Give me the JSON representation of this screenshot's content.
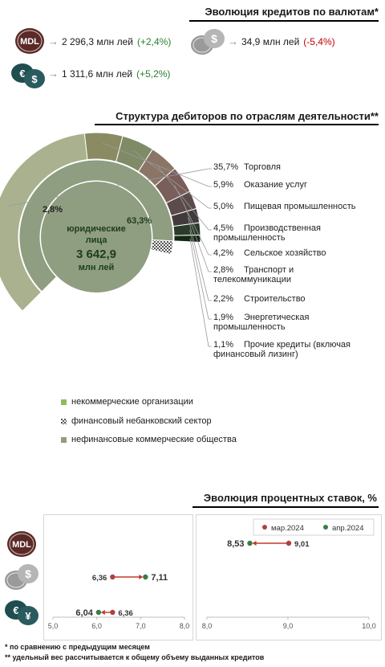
{
  "credits": {
    "title": "Эволюция кредитов по валютам*",
    "items": [
      {
        "icon": "mdl-coin-icon",
        "label": "MDL",
        "value": "2 296,3 млн лей",
        "change": "(+2,4%)",
        "trend": "up"
      },
      {
        "icon": "foreign-currency-coins-icon",
        "label": "$",
        "value": "34,9 млн лей",
        "change": "(-5,4%)",
        "trend": "down"
      },
      {
        "icon": "euro-dollar-coins-icon",
        "label": "€$",
        "value": "1 311,6 млн лей",
        "change": "(+5,2%)",
        "trend": "up"
      }
    ]
  },
  "structure": {
    "title": "Структура дебиторов по отраслям деятельности**",
    "center_label_top": "юридические",
    "center_label_mid": "лица",
    "center_value": "3 642,9",
    "center_unit": "млн лей",
    "inner_label_big": "63,3%",
    "inner_label_small": "2,8%",
    "labels": [
      {
        "pct": "35,7%",
        "text": "Торговля"
      },
      {
        "pct": "5,9%",
        "text": "Оказание услуг"
      },
      {
        "pct": "5,0%",
        "text": "Пищевая промышленность"
      },
      {
        "pct": "4,5%",
        "text": "Производственная",
        "text2": "промышленность"
      },
      {
        "pct": "4,2%",
        "text": "Сельское хозяйство"
      },
      {
        "pct": "2,8%",
        "text": "Транспорт и",
        "text2": "телекоммуникации"
      },
      {
        "pct": "2,2%",
        "text": "Строительство"
      },
      {
        "pct": "1,9%",
        "text": "Энергетическая",
        "text2": "промышленность"
      },
      {
        "pct": "1,1%",
        "text": "Прочие кредиты (включая",
        "text2": "финансовый лизинг)"
      }
    ],
    "legend": [
      {
        "label": "некоммерческие организации",
        "color": "#8fbc5a"
      },
      {
        "label": "финансовый небанковский сектор",
        "color": "pattern"
      },
      {
        "label": "нефинансовые коммерческие общества",
        "color": "#8f9d80"
      }
    ]
  },
  "rates": {
    "title": "Эволюция процентных ставок, %",
    "legend_mar": "мар.2024",
    "legend_apr": "апр.2024",
    "color_mar": "#b04040",
    "color_apr": "#3a7d44",
    "mdl_icon_label": "MDL"
  },
  "chart_data": [
    {
      "type": "pie",
      "title": "Структура дебиторов по отраслям деятельности**",
      "inner_ring": [
        {
          "name": "нефинансовые коммерческие общества",
          "value": 63.3
        },
        {
          "name": "финансовый небанковский сектор",
          "value": 2.8
        }
      ],
      "outer_ring": [
        {
          "name": "Торговля",
          "value": 35.7
        },
        {
          "name": "Оказание услуг",
          "value": 5.9
        },
        {
          "name": "Пищевая промышленность",
          "value": 5.0
        },
        {
          "name": "Производственная промышленность",
          "value": 4.5
        },
        {
          "name": "Сельское хозяйство",
          "value": 4.2
        },
        {
          "name": "Транспорт и телекоммуникации",
          "value": 2.8
        },
        {
          "name": "Строительство",
          "value": 2.2
        },
        {
          "name": "Энергетическая промышленность",
          "value": 1.9
        },
        {
          "name": "Прочие кредиты (включая финансовый лизинг)",
          "value": 1.1
        }
      ]
    },
    {
      "type": "scatter",
      "title": "Эволюция процентных ставок, %",
      "xlim": [
        5.0,
        8.0
      ],
      "xticks": [
        "5,0",
        "6,0",
        "7,0",
        "8,0"
      ],
      "rows": [
        {
          "name": "MDL",
          "mar": null,
          "apr": null
        },
        {
          "name": "USD",
          "mar": 6.36,
          "apr": 7.11,
          "mar_label": "6,36",
          "apr_label": "7,11"
        },
        {
          "name": "EUR/USD",
          "mar": 6.36,
          "apr": 6.04,
          "mar_label": "6,36",
          "apr_label": "6,04"
        }
      ]
    },
    {
      "type": "scatter",
      "title": "Эволюция процентных ставок, %",
      "xlim": [
        8.0,
        10.0
      ],
      "xticks": [
        "8,0",
        "9,0",
        "10,0"
      ],
      "rows": [
        {
          "name": "MDL",
          "mar": 9.01,
          "apr": 8.53,
          "mar_label": "9,01",
          "apr_label": "8,53"
        }
      ]
    }
  ],
  "footnotes": [
    "* по сравнению с предыдущим месяцем",
    "** удельный вес рассчитывается к общему объему выданных кредитов"
  ]
}
